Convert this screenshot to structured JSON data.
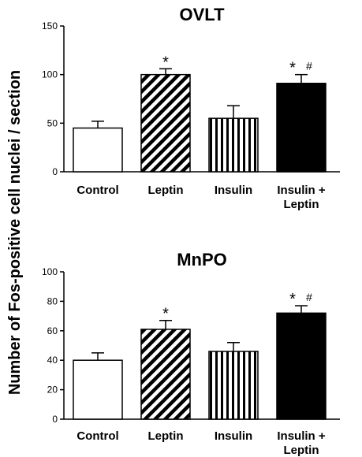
{
  "figure": {
    "shared_ylabel": "Number of Fos-positive cell nuclei / section"
  },
  "chart_data": [
    {
      "type": "bar",
      "title": "OVLT",
      "categories": [
        "Control",
        "Leptin",
        "Insulin",
        "Insulin +\nLeptin"
      ],
      "values": [
        45,
        100,
        55,
        91
      ],
      "errors": [
        7,
        6,
        13,
        9
      ],
      "patterns": [
        "white",
        "diagonal-hatch",
        "vertical-hatch",
        "solid-black"
      ],
      "significance": [
        [],
        [
          "*"
        ],
        [],
        [
          "*",
          "#"
        ]
      ],
      "ylim": [
        0,
        150
      ],
      "yticks": [
        0,
        50,
        100,
        150
      ],
      "grid": false,
      "legend": "none"
    },
    {
      "type": "bar",
      "title": "MnPO",
      "categories": [
        "Control",
        "Leptin",
        "Insulin",
        "Insulin +\nLeptin"
      ],
      "values": [
        40,
        61,
        46,
        72
      ],
      "errors": [
        5,
        6,
        6,
        5
      ],
      "patterns": [
        "white",
        "diagonal-hatch",
        "vertical-hatch",
        "solid-black"
      ],
      "significance": [
        [],
        [
          "*"
        ],
        [],
        [
          "*",
          "#"
        ]
      ],
      "ylim": [
        0,
        100
      ],
      "yticks": [
        0,
        20,
        40,
        60,
        80,
        100
      ],
      "grid": false,
      "legend": "none"
    }
  ],
  "colors": {
    "ink": "#000000",
    "background": "#ffffff"
  }
}
